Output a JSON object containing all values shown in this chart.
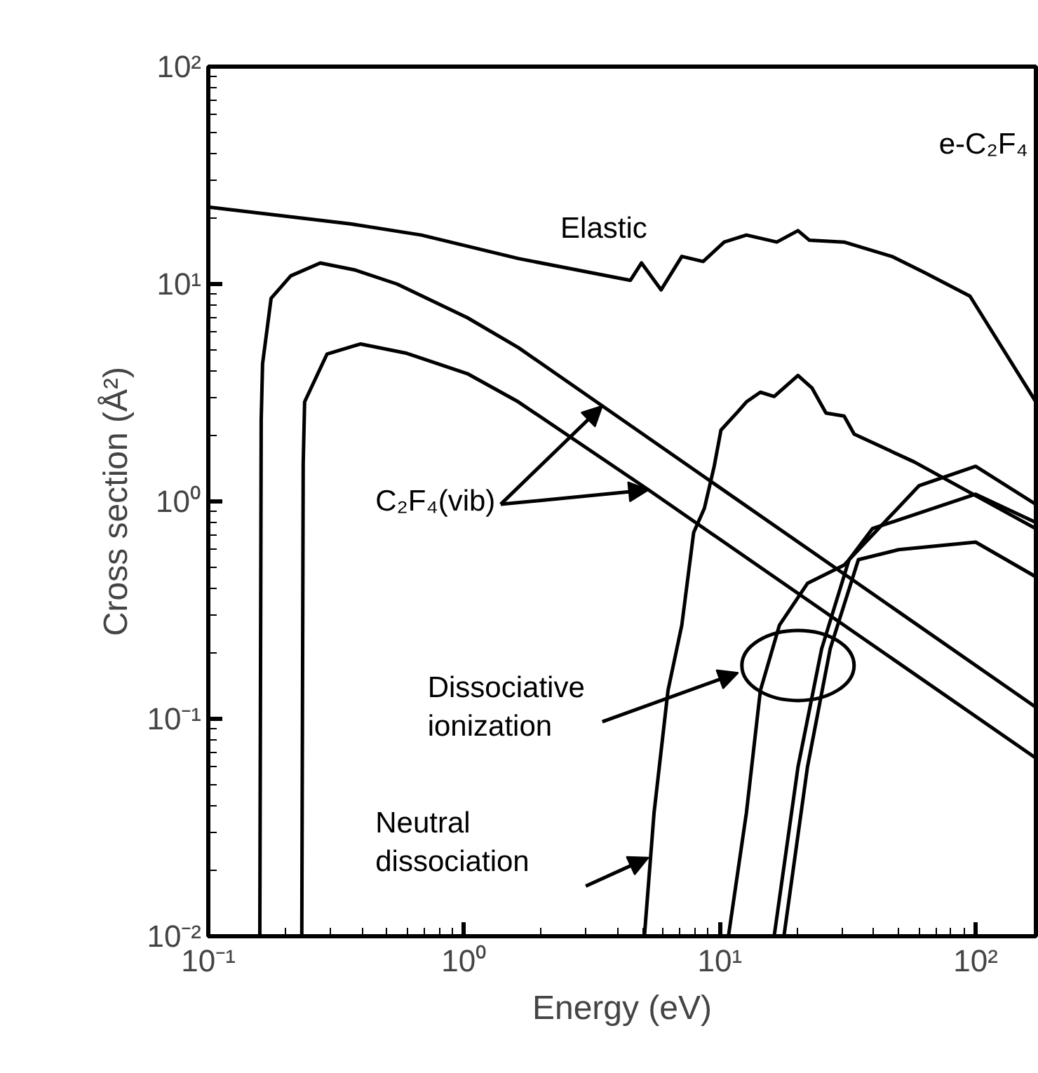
{
  "chart_data": {
    "type": "line",
    "xlabel": "Energy (eV)",
    "ylabel": "Cross section (Å²)",
    "log": "xy",
    "grid": false,
    "line_style": "solid",
    "xlim": [
      0.1,
      172
    ],
    "ylim": [
      0.01,
      100
    ],
    "xticks": [
      {
        "value": 0.1,
        "label": "10⁻¹"
      },
      {
        "value": 1,
        "label": "10⁰"
      },
      {
        "value": 10,
        "label": "10¹"
      },
      {
        "value": 100,
        "label": "10²"
      }
    ],
    "yticks": [
      {
        "value": 0.01,
        "label": "10⁻²"
      },
      {
        "value": 0.1,
        "label": "10⁻¹"
      },
      {
        "value": 1,
        "label": "10⁰"
      },
      {
        "value": 10,
        "label": "10¹"
      },
      {
        "value": 100,
        "label": "10²"
      }
    ],
    "series": [
      {
        "color": "#000000",
        "x": [
          0.1,
          0.36,
          0.68,
          1.63,
          4.47,
          4.94,
          5.89,
          7.1,
          8.6,
          10.4,
          12.7,
          16.7,
          20.2,
          22.4,
          30.6,
          47,
          63,
          95,
          172
        ],
        "values": [
          22.6,
          18.9,
          16.8,
          13.1,
          10.4,
          12.5,
          9.4,
          13.4,
          12.7,
          15.6,
          16.8,
          15.6,
          17.6,
          15.9,
          15.6,
          13.4,
          11.3,
          8.8,
          2.87
        ]
      },
      {
        "color": "#000000",
        "x": [
          0.159,
          0.161,
          0.163,
          0.176,
          0.21,
          0.274,
          0.375,
          0.547,
          1.03,
          1.63,
          3.47,
          172
        ],
        "values": [
          0.01,
          2.37,
          4.3,
          8.6,
          10.9,
          12.5,
          11.6,
          10,
          7.0,
          5.1,
          2.75,
          0.113
        ]
      },
      {
        "color": "#000000",
        "x": [
          0.232,
          0.235,
          0.238,
          0.291,
          0.394,
          0.597,
          1.03,
          1.63,
          5.26,
          172
        ],
        "values": [
          0.01,
          1.5,
          2.87,
          4.76,
          5.3,
          4.8,
          3.87,
          2.87,
          1.13,
          0.066
        ]
      },
      {
        "color": "#000000",
        "x": [
          5.07,
          5.53,
          6.27,
          7.1,
          7.9,
          8.7,
          9.5,
          10.1,
          11.8,
          12.7,
          14.4,
          16.3,
          20.2,
          22.9,
          26,
          30.6,
          33.5,
          57.5,
          172
        ],
        "values": [
          0.01,
          0.037,
          0.135,
          0.27,
          0.72,
          0.93,
          1.45,
          2.13,
          2.6,
          2.87,
          3.18,
          3.04,
          3.8,
          3.33,
          2.55,
          2.47,
          2.04,
          1.52,
          0.75
        ]
      },
      {
        "color": "#000000",
        "x": [
          10.8,
          12.7,
          14.4,
          17.1,
          22.0,
          30.6,
          60,
          100,
          172
        ],
        "values": [
          0.01,
          0.037,
          0.135,
          0.27,
          0.42,
          0.51,
          1.18,
          1.45,
          0.97
        ]
      },
      {
        "color": "#000000",
        "x": [
          16.3,
          20.2,
          25,
          32,
          39.5,
          100,
          172
        ],
        "values": [
          0.01,
          0.06,
          0.21,
          0.54,
          0.75,
          1.08,
          0.8
        ]
      },
      {
        "color": "#000000",
        "x": [
          17.8,
          22,
          27,
          34.8,
          50,
          100,
          172
        ],
        "values": [
          0.01,
          0.06,
          0.21,
          0.54,
          0.6,
          0.65,
          0.45
        ]
      }
    ],
    "annotations": [
      "e-C₂F₄",
      "Elastic",
      {
        "text": "C₂F₄(vib)",
        "x": 3.47,
        "y": 2.75
      },
      "Dissociative\nionization",
      "Neutral\ndissociation"
    ]
  }
}
